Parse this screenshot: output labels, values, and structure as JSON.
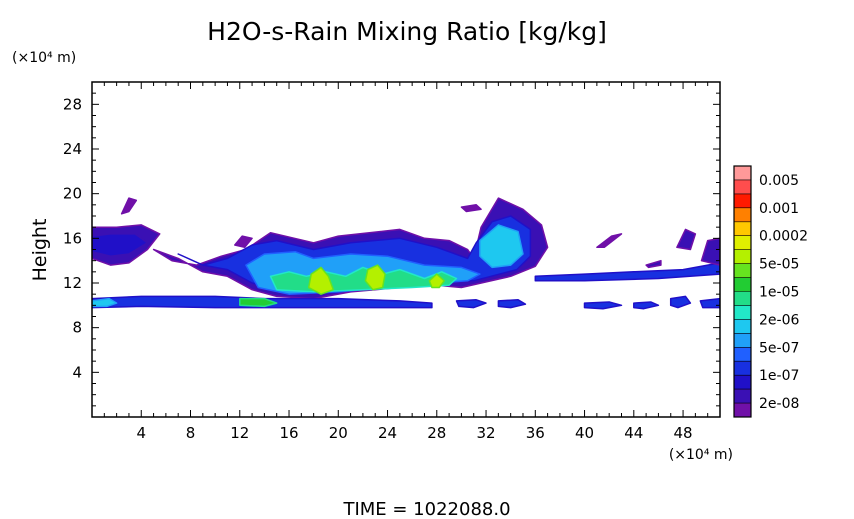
{
  "chart_data": {
    "type": "heatmap",
    "title": "H2O-s-Rain Mixing Ratio [kg/kg]",
    "ylabel": "Height",
    "x_unit": "(×10⁴ m)",
    "y_unit": "(×10⁴ m)",
    "xlim": [
      0,
      51
    ],
    "ylim": [
      0,
      30
    ],
    "xticks": [
      4,
      8,
      12,
      16,
      20,
      24,
      28,
      32,
      36,
      40,
      44,
      48
    ],
    "yticks": [
      4,
      8,
      12,
      16,
      20,
      24,
      28
    ],
    "colorbar": {
      "labels": [
        "0.005",
        "0.001",
        "0.0002",
        "5e-05",
        "1e-05",
        "2e-06",
        "5e-07",
        "1e-07",
        "2e-08"
      ],
      "colors_top_to_bottom": [
        "#ff9999",
        "#ff4d4d",
        "#ff1a00",
        "#ff8000",
        "#ffc800",
        "#e0f000",
        "#b4f000",
        "#66e31f",
        "#22cc33",
        "#22dd88",
        "#22e8c8",
        "#1ec8f0",
        "#20a0f8",
        "#2060ff",
        "#1830e0",
        "#2010c8",
        "#3a10b4",
        "#7010a8"
      ]
    },
    "regions": [
      {
        "level": 1,
        "points": [
          [
            0,
            14.2
          ],
          [
            1.5,
            13.6
          ],
          [
            3,
            13.8
          ],
          [
            4.5,
            15
          ],
          [
            5.5,
            16.4
          ],
          [
            4,
            17.2
          ],
          [
            2,
            17
          ],
          [
            0,
            17
          ]
        ]
      },
      {
        "level": 1,
        "points": [
          [
            5,
            15
          ],
          [
            6.5,
            14
          ],
          [
            8.5,
            13.6
          ],
          [
            10.5,
            14.4
          ],
          [
            12.5,
            15
          ],
          [
            14.5,
            16.5
          ],
          [
            18,
            15.6
          ],
          [
            20,
            16.2
          ],
          [
            25,
            16.8
          ],
          [
            27,
            16
          ],
          [
            29,
            15.8
          ],
          [
            30.5,
            15
          ],
          [
            31,
            14.2
          ],
          [
            31.6,
            17
          ],
          [
            33,
            19.6
          ],
          [
            35,
            18.6
          ],
          [
            36.5,
            17.2
          ],
          [
            37,
            15.2
          ],
          [
            36,
            13.5
          ],
          [
            34,
            12.6
          ],
          [
            30,
            11.6
          ],
          [
            28,
            11.8
          ],
          [
            25,
            11.6
          ],
          [
            21,
            11.2
          ],
          [
            18,
            10.6
          ],
          [
            15,
            10.8
          ],
          [
            13,
            11.4
          ],
          [
            11,
            12.6
          ],
          [
            9,
            13
          ],
          [
            7,
            14.2
          ]
        ]
      },
      {
        "level": 2,
        "points": [
          [
            0,
            14.8
          ],
          [
            1.5,
            14.4
          ],
          [
            3,
            14.6
          ],
          [
            4.5,
            15.6
          ],
          [
            3.5,
            16.4
          ],
          [
            1.5,
            16.4
          ],
          [
            0,
            16.2
          ]
        ]
      },
      {
        "level": 3,
        "points": [
          [
            7,
            14.6
          ],
          [
            9,
            13.6
          ],
          [
            11,
            14.2
          ],
          [
            13,
            15.4
          ],
          [
            15,
            15.8
          ],
          [
            18,
            15
          ],
          [
            21,
            15.6
          ],
          [
            25,
            16
          ],
          [
            28,
            15.2
          ],
          [
            30.5,
            14.2
          ],
          [
            31.2,
            15.6
          ],
          [
            32.5,
            17.5
          ],
          [
            34,
            18
          ],
          [
            35.6,
            16.8
          ],
          [
            35.6,
            14.4
          ],
          [
            34.5,
            13.2
          ],
          [
            31,
            12.2
          ],
          [
            28,
            12.2
          ],
          [
            24,
            11.8
          ],
          [
            20,
            11.4
          ],
          [
            16,
            11.2
          ],
          [
            13,
            12
          ],
          [
            11,
            13.2
          ],
          [
            9,
            13.6
          ]
        ]
      },
      {
        "level": 5,
        "points": [
          [
            12.5,
            13.6
          ],
          [
            14,
            14.6
          ],
          [
            16.5,
            14.8
          ],
          [
            18,
            14.2
          ],
          [
            21,
            14.6
          ],
          [
            24,
            14.4
          ],
          [
            27,
            13.6
          ],
          [
            30,
            13.4
          ],
          [
            31.5,
            12.8
          ],
          [
            30.5,
            12.2
          ],
          [
            28,
            12
          ],
          [
            24,
            11.6
          ],
          [
            20,
            11.2
          ],
          [
            16,
            11
          ],
          [
            13.5,
            11.6
          ]
        ]
      },
      {
        "level": 6,
        "points": [
          [
            31.5,
            15.8
          ],
          [
            33,
            17.2
          ],
          [
            34.6,
            16.6
          ],
          [
            35,
            14.6
          ],
          [
            34,
            13.6
          ],
          [
            32.5,
            13.4
          ],
          [
            31.5,
            14.4
          ]
        ]
      },
      {
        "level": 8,
        "points": [
          [
            14.5,
            12.6
          ],
          [
            16,
            13
          ],
          [
            17.4,
            12.6
          ],
          [
            19,
            13
          ],
          [
            20.6,
            12.6
          ],
          [
            22,
            13.4
          ],
          [
            23.6,
            12.8
          ],
          [
            25,
            13.2
          ],
          [
            27,
            12.4
          ],
          [
            28.4,
            13
          ],
          [
            29.6,
            12.4
          ],
          [
            29,
            11.8
          ],
          [
            26,
            11.6
          ],
          [
            22,
            11.4
          ],
          [
            18,
            11.2
          ],
          [
            15,
            11.4
          ]
        ]
      },
      {
        "level": 11,
        "points": [
          [
            17.8,
            12.8
          ],
          [
            18.6,
            13.4
          ],
          [
            19.2,
            12.6
          ],
          [
            19.6,
            11.4
          ],
          [
            18.6,
            11
          ],
          [
            17.6,
            11.6
          ]
        ]
      },
      {
        "level": 11,
        "points": [
          [
            22.4,
            13.2
          ],
          [
            23.2,
            13.6
          ],
          [
            23.8,
            12.8
          ],
          [
            23.6,
            11.6
          ],
          [
            22.8,
            11.4
          ],
          [
            22.2,
            12.2
          ]
        ]
      },
      {
        "level": 11,
        "points": [
          [
            27.4,
            12.2
          ],
          [
            28,
            12.8
          ],
          [
            28.6,
            12.2
          ],
          [
            28.2,
            11.6
          ],
          [
            27.6,
            11.6
          ]
        ]
      },
      {
        "level": 3,
        "points": [
          [
            0,
            10.6
          ],
          [
            4,
            10.8
          ],
          [
            10,
            10.8
          ],
          [
            14,
            10.6
          ],
          [
            20,
            10.6
          ],
          [
            25,
            10.4
          ],
          [
            27.6,
            10.2
          ],
          [
            27.6,
            9.8
          ],
          [
            22,
            9.8
          ],
          [
            16,
            9.8
          ],
          [
            10,
            9.8
          ],
          [
            4,
            9.9
          ],
          [
            0,
            9.8
          ]
        ]
      },
      {
        "level": 6,
        "points": [
          [
            0,
            10.4
          ],
          [
            1.4,
            10.6
          ],
          [
            2,
            10.2
          ],
          [
            1.2,
            9.9
          ],
          [
            0,
            9.9
          ]
        ]
      },
      {
        "level": 9,
        "points": [
          [
            12,
            10.6
          ],
          [
            14,
            10.6
          ],
          [
            15,
            10.2
          ],
          [
            14,
            9.9
          ],
          [
            12,
            10
          ]
        ]
      },
      {
        "level": 3,
        "points": [
          [
            29.6,
            10.4
          ],
          [
            31.2,
            10.5
          ],
          [
            32,
            10.2
          ],
          [
            31,
            9.8
          ],
          [
            29.8,
            9.9
          ]
        ]
      },
      {
        "level": 3,
        "points": [
          [
            33,
            10.4
          ],
          [
            34.6,
            10.5
          ],
          [
            35.2,
            10.1
          ],
          [
            34,
            9.8
          ],
          [
            33,
            9.9
          ]
        ]
      },
      {
        "level": 3,
        "points": [
          [
            40,
            10.2
          ],
          [
            42,
            10.3
          ],
          [
            43,
            10
          ],
          [
            41.5,
            9.7
          ],
          [
            40,
            9.8
          ]
        ]
      },
      {
        "level": 3,
        "points": [
          [
            44,
            10.2
          ],
          [
            45.4,
            10.3
          ],
          [
            46,
            10
          ],
          [
            44.8,
            9.7
          ],
          [
            44,
            9.8
          ]
        ]
      },
      {
        "level": 3,
        "points": [
          [
            47,
            10.6
          ],
          [
            48.2,
            10.8
          ],
          [
            48.6,
            10.2
          ],
          [
            47.6,
            9.8
          ],
          [
            47,
            10
          ]
        ]
      },
      {
        "level": 3,
        "points": [
          [
            49.4,
            10.4
          ],
          [
            51,
            10.6
          ],
          [
            51,
            9.8
          ],
          [
            49.6,
            9.8
          ]
        ]
      },
      {
        "level": 3,
        "points": [
          [
            36,
            12.6
          ],
          [
            40,
            12.8
          ],
          [
            44,
            13
          ],
          [
            48,
            13.2
          ],
          [
            51,
            13.8
          ],
          [
            51,
            12.8
          ],
          [
            46,
            12.4
          ],
          [
            40,
            12.2
          ],
          [
            36,
            12.2
          ]
        ]
      },
      {
        "level": 1,
        "points": [
          [
            49.5,
            14
          ],
          [
            51,
            13.6
          ],
          [
            51,
            16
          ],
          [
            50,
            15.8
          ]
        ]
      },
      {
        "level": 1,
        "points": [
          [
            47.5,
            15.2
          ],
          [
            48.6,
            15
          ],
          [
            49,
            16.4
          ],
          [
            48.2,
            16.8
          ]
        ]
      },
      {
        "level": 0,
        "points": [
          [
            2.4,
            18.2
          ],
          [
            3,
            19.6
          ],
          [
            3.6,
            19.4
          ],
          [
            3,
            18.4
          ]
        ]
      },
      {
        "level": 0,
        "points": [
          [
            11.6,
            15.4
          ],
          [
            12.2,
            16.2
          ],
          [
            13,
            16
          ],
          [
            12.4,
            15.2
          ]
        ]
      },
      {
        "level": 0,
        "points": [
          [
            41,
            15.2
          ],
          [
            42.2,
            16.2
          ],
          [
            43,
            16.4
          ],
          [
            41.6,
            15.2
          ]
        ]
      },
      {
        "level": 1,
        "points": [
          [
            45,
            13.6
          ],
          [
            46.2,
            14
          ],
          [
            46.2,
            13.6
          ],
          [
            45.2,
            13.4
          ]
        ]
      },
      {
        "level": 0,
        "points": [
          [
            30,
            18.8
          ],
          [
            31.2,
            19
          ],
          [
            31.6,
            18.6
          ],
          [
            30.4,
            18.4
          ]
        ]
      }
    ]
  },
  "time_label": "TIME  =  1022088.0"
}
